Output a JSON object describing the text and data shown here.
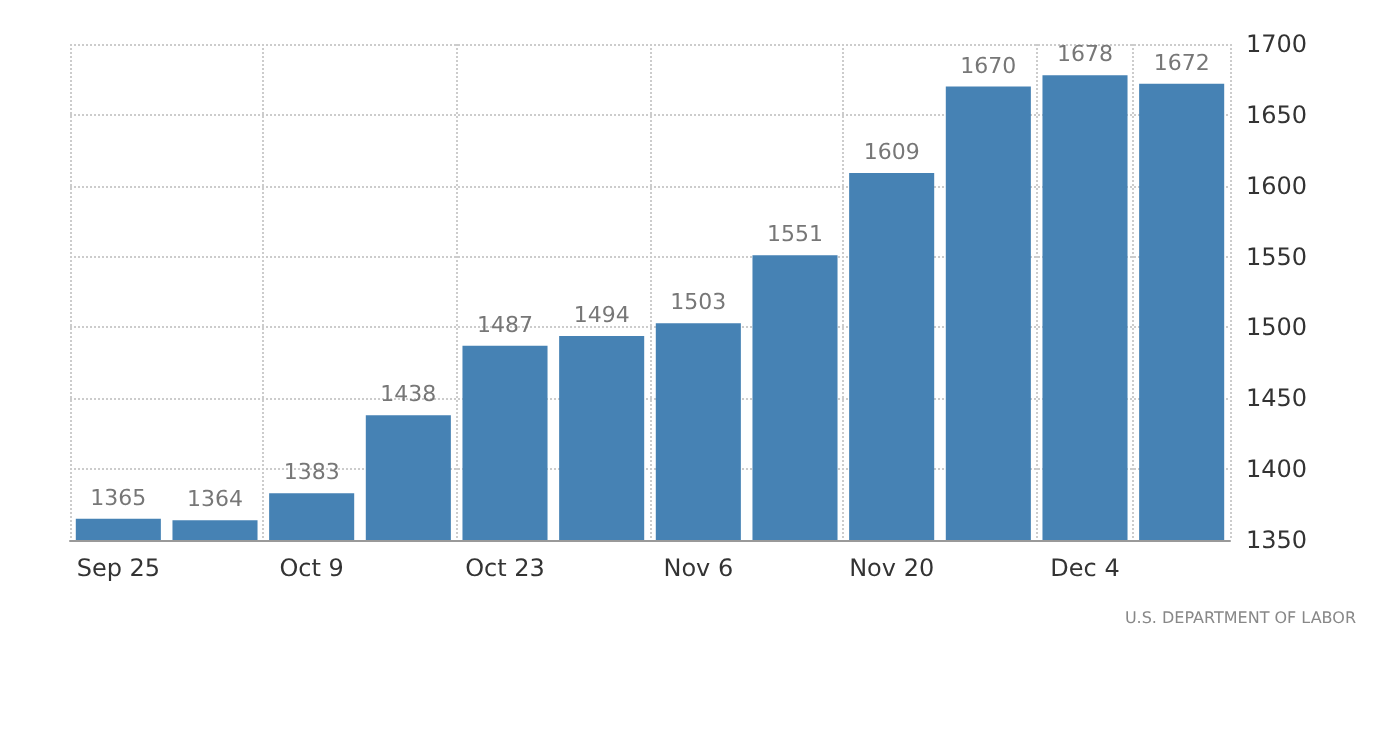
{
  "chart_data": {
    "type": "bar",
    "categories": [
      "Sep 25",
      null,
      "Oct 9",
      null,
      "Oct 23",
      null,
      "Nov 6",
      null,
      "Nov 20",
      null,
      "Dec 4",
      null
    ],
    "values": [
      1365,
      1364,
      1383,
      1438,
      1487,
      1494,
      1503,
      1551,
      1609,
      1670,
      1678,
      1672
    ],
    "color": "#4682b4",
    "ylim": [
      1350,
      1700
    ],
    "yticks": [
      1350,
      1400,
      1450,
      1500,
      1550,
      1600,
      1650,
      1700
    ],
    "grid": true,
    "data_labels": true,
    "annotations": [
      "U.S. DEPARTMENT OF LABOR"
    ]
  }
}
